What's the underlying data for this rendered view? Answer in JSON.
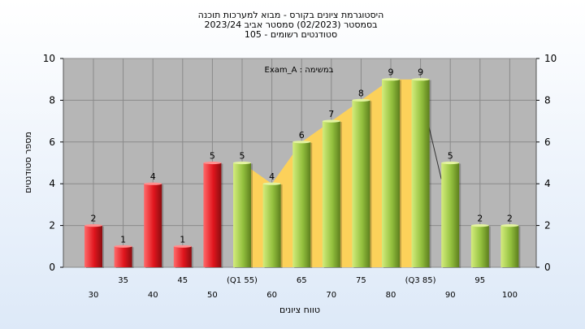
{
  "chart_data": {
    "type": "bar",
    "title_lines": [
      "היסטוגרמת ציונים בקורס - מבוא למערכות תוכנה",
      "בסמסטר  (02/2023)  סמסטר אביב 2023/24",
      "סטודנטים רשומים - 105"
    ],
    "xlabel": "טווח ציונים",
    "ylabel": "מספר סטודנטים",
    "annotation": "Exam_A : במשימה",
    "ylim": [
      0,
      10
    ],
    "yticks": [
      0,
      2,
      4,
      6,
      8,
      10
    ],
    "right_axis_ticks": [
      0,
      2,
      4,
      6,
      8,
      10
    ],
    "grid": true,
    "categories": [
      "30",
      "35",
      "40",
      "45",
      "50",
      "(Q1 55)",
      "60",
      "65",
      "70",
      "75",
      "80",
      "(Q3 85)",
      "90",
      "95",
      "100"
    ],
    "values": [
      2,
      1,
      4,
      1,
      5,
      5,
      4,
      6,
      7,
      8,
      9,
      9,
      5,
      2,
      2
    ],
    "bar_colors": [
      "red",
      "red",
      "red",
      "red",
      "red",
      "green",
      "green",
      "green",
      "green",
      "green",
      "green",
      "green",
      "green",
      "green",
      "green"
    ],
    "colors": {
      "red_bar": "#e8222a",
      "green_bar": "#9fca45",
      "plot_bg": "#b6b6b6",
      "iqr_area": "#fcd15a"
    }
  }
}
